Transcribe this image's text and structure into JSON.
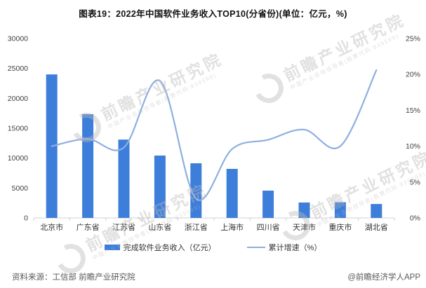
{
  "title": "图表19：2022年中国软件业务收入TOP10(分省份)(单位：亿元，%)",
  "legend": {
    "bar_label": "完成软件业务收入（亿元）",
    "line_label": "累计增速（%）"
  },
  "footer": {
    "source": "资料来源：工信部 前瞻产业研究院",
    "credit": "@前瞻经济学人APP"
  },
  "watermark": {
    "main": "前瞻产业研究院",
    "sub": "中国产业咨询领导者(股票代码:839599)"
  },
  "colors": {
    "bar": "#3d7edb",
    "line": "#8fafe0",
    "axis_text": "#404040",
    "label_text": "#333333",
    "axis_line": "#d0d0d0",
    "title_text": "#111111",
    "footer_text": "#595959",
    "watermark": "#b9b9b9"
  },
  "chart_data": {
    "type": "bar",
    "title": "图表19：2022年中国软件业务收入TOP10(分省份)(单位：亿元，%)",
    "categories": [
      "北京市",
      "广东省",
      "江苏省",
      "山东省",
      "浙江省",
      "上海市",
      "四川省",
      "天津市",
      "重庆市",
      "湖北省"
    ],
    "series": [
      {
        "name": "完成软件业务收入（亿元）",
        "type": "bar",
        "axis": "left",
        "values": [
          24000,
          17350,
          13100,
          10430,
          9140,
          8200,
          4570,
          2580,
          2620,
          2330
        ]
      },
      {
        "name": "累计增速（%）",
        "type": "line",
        "smooth": true,
        "axis": "right",
        "values": [
          10.0,
          11.0,
          9.8,
          19.1,
          2.7,
          9.6,
          10.9,
          12.3,
          10.0,
          20.6
        ]
      }
    ],
    "left_axis": {
      "min": 0,
      "max": 30000,
      "tick_step": 5000,
      "tick_labels": [
        "0",
        "5000",
        "10000",
        "15000",
        "20000",
        "25000",
        "30000"
      ]
    },
    "right_axis": {
      "min": 0,
      "max": 25,
      "tick_step": 5,
      "tick_labels": [
        "0%",
        "5%",
        "10%",
        "15%",
        "20%",
        "25%"
      ]
    },
    "grid": false,
    "legend_position": "bottom"
  }
}
